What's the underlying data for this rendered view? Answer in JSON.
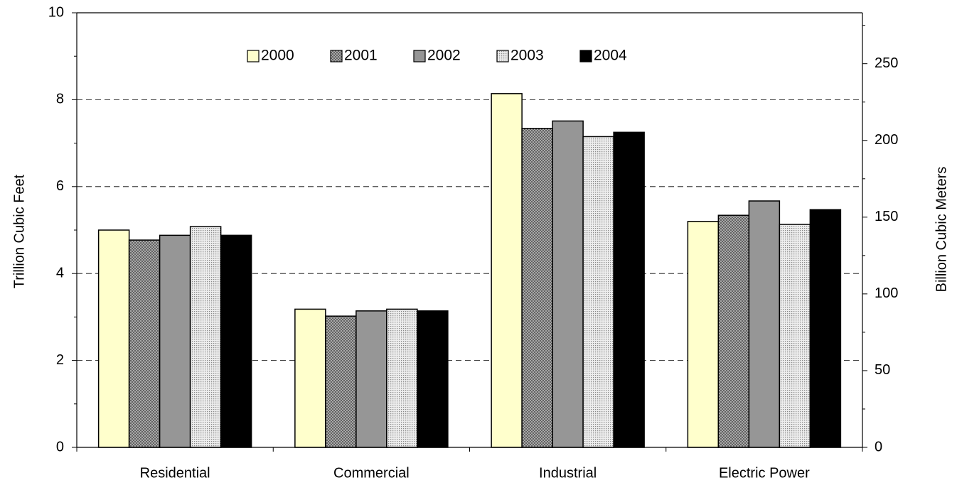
{
  "chart_data": {
    "type": "bar",
    "categories": [
      "Residential",
      "Commercial",
      "Industrial",
      "Electric Power"
    ],
    "series": [
      {
        "name": "2000",
        "values": [
          5.0,
          3.18,
          8.14,
          5.2
        ],
        "color": "#FFFFCC",
        "pattern": "solid"
      },
      {
        "name": "2001",
        "values": [
          4.77,
          3.02,
          7.34,
          5.34
        ],
        "color": "#999999",
        "pattern": "crosshatch"
      },
      {
        "name": "2002",
        "values": [
          4.88,
          3.14,
          7.51,
          5.67
        ],
        "color": "#969696",
        "pattern": "solid"
      },
      {
        "name": "2003",
        "values": [
          5.08,
          3.18,
          7.15,
          5.13
        ],
        "color": "#D0D0D0",
        "pattern": "dotted"
      },
      {
        "name": "2004",
        "values": [
          4.88,
          3.14,
          7.25,
          5.47
        ],
        "color": "#000000",
        "pattern": "solid"
      }
    ],
    "ylabel": "Trillion Cubic Feet",
    "ylabel_right": "Billion Cubic Meters",
    "ylim": [
      0,
      10
    ],
    "yticks": [
      "0",
      "2",
      "4",
      "6",
      "8",
      "10"
    ],
    "ylim_right": [
      0,
      283.17
    ],
    "yticks_right": [
      "0",
      "50",
      "100",
      "150",
      "200",
      "250"
    ],
    "grid": "horizontal dashed at major ticks",
    "legend_position": "top-center"
  }
}
